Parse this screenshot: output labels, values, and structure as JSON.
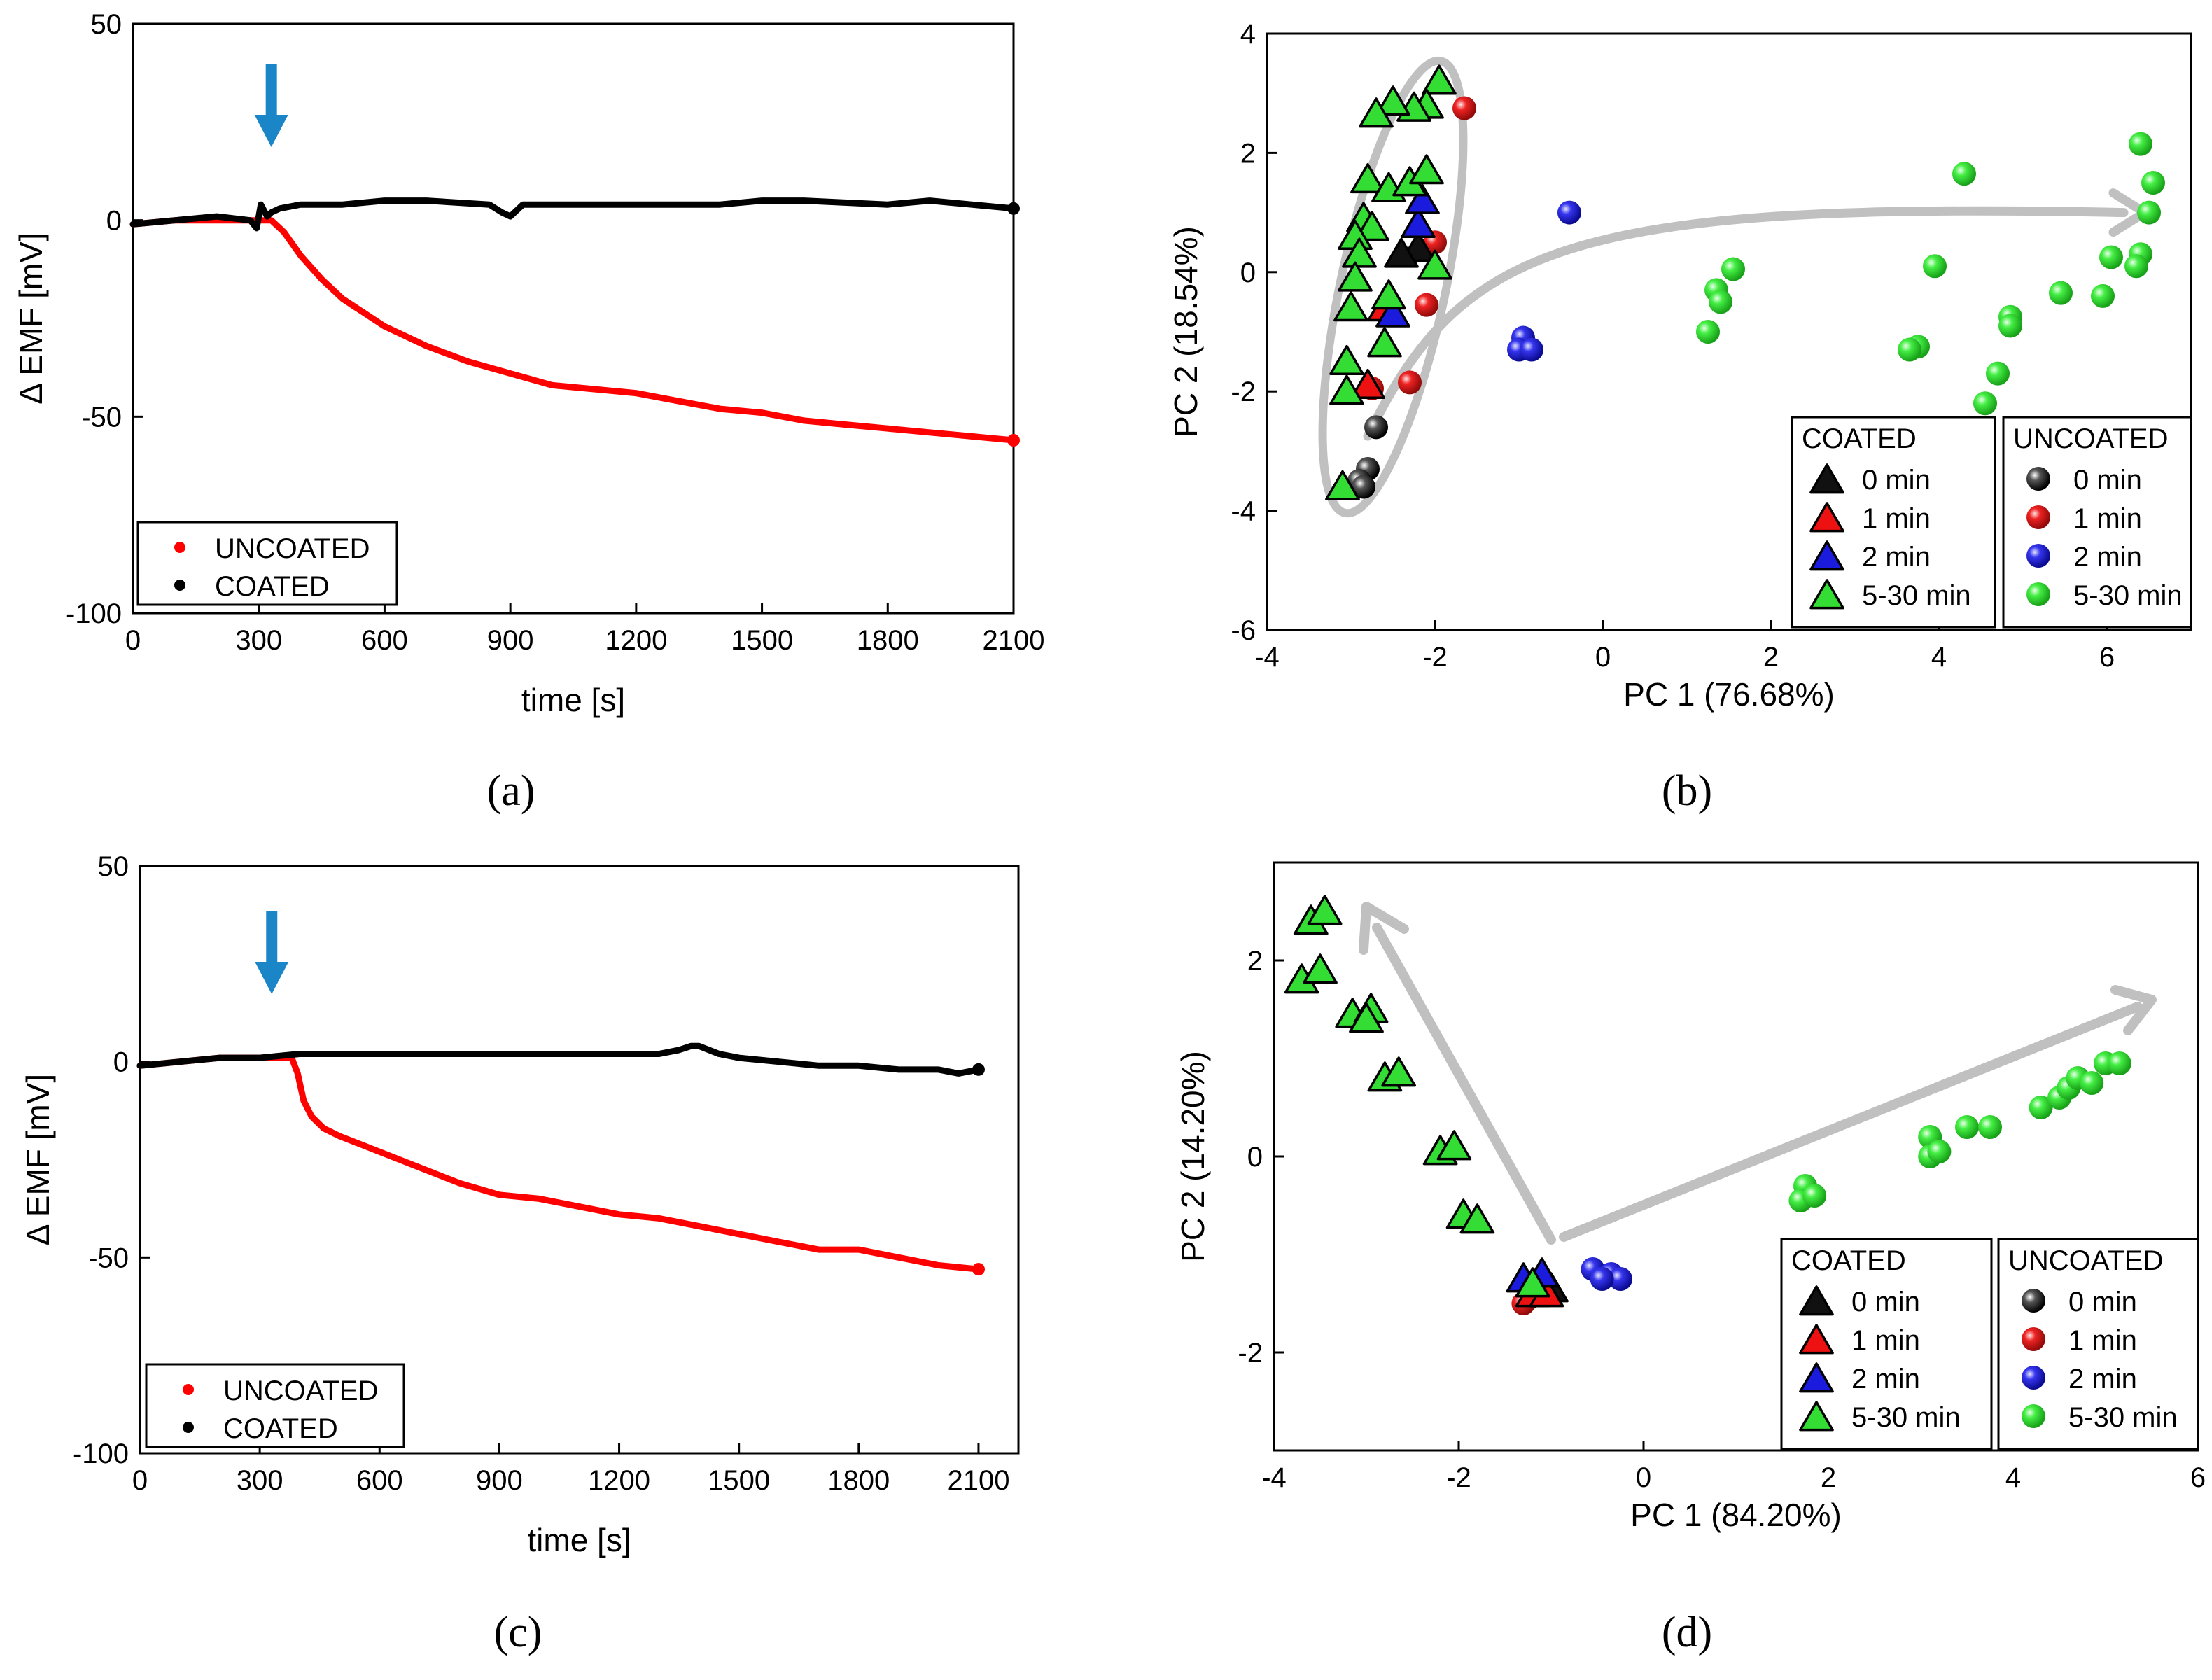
{
  "captions": [
    "(a)",
    "(b)",
    "(c)",
    "(d)"
  ],
  "colors": {
    "uncoated_line": "#ff0000",
    "coated_line": "#000000",
    "arrow_blue": "#1a86c8",
    "arrow_gray": "#c0c0c0",
    "green": "#33dd33",
    "blue": "#1b1bdd",
    "red": "#ee1111",
    "black": "#111111"
  },
  "chart_data": [
    {
      "id": "a",
      "type": "line",
      "xlabel": "time [s]",
      "ylabel": "Δ EMF [mV]",
      "xlim": [
        0,
        2100
      ],
      "ylim": [
        -100,
        50
      ],
      "xticks": [
        0,
        300,
        600,
        900,
        1200,
        1500,
        1800,
        2100
      ],
      "yticks": [
        -100,
        -50,
        0,
        50
      ],
      "xtick_labels": [
        "0",
        "300",
        "600",
        "900",
        "1200",
        "1500",
        "1800",
        "2100"
      ],
      "ytick_labels": [
        "-100",
        "-50",
        "0",
        "50"
      ],
      "injection_time": 330,
      "legend": [
        "UNCOATED",
        "COATED"
      ],
      "series": [
        {
          "name": "UNCOATED",
          "x": [
            0,
            100,
            200,
            300,
            330,
            360,
            400,
            450,
            500,
            600,
            700,
            800,
            900,
            1000,
            1100,
            1200,
            1300,
            1400,
            1500,
            1600,
            1700,
            1800,
            1900,
            2000,
            2100
          ],
          "values": [
            -1,
            0,
            0,
            0,
            0,
            -3,
            -9,
            -15,
            -20,
            -27,
            -32,
            -36,
            -39,
            -42,
            -43,
            -44,
            -46,
            -48,
            -49,
            -51,
            -52,
            -53,
            -54,
            -55,
            -56
          ]
        },
        {
          "name": "COATED",
          "x": [
            0,
            100,
            200,
            280,
            295,
            305,
            320,
            330,
            350,
            400,
            500,
            600,
            700,
            850,
            880,
            900,
            930,
            1000,
            1200,
            1400,
            1500,
            1600,
            1800,
            1900,
            2000,
            2100
          ],
          "values": [
            -1,
            0,
            1,
            0,
            -2,
            4,
            1,
            2,
            3,
            4,
            4,
            5,
            5,
            4,
            2,
            1,
            4,
            4,
            4,
            4,
            5,
            5,
            4,
            5,
            4,
            3
          ]
        }
      ]
    },
    {
      "id": "b",
      "type": "scatter",
      "xlabel": "PC 1 (76.68%)",
      "ylabel": "PC 2 (18.54%)",
      "xlim": [
        -4,
        7
      ],
      "ylim": [
        -6,
        4
      ],
      "xticks": [
        -4,
        -2,
        0,
        2,
        4,
        6
      ],
      "yticks": [
        -6,
        -4,
        -2,
        0,
        2,
        4
      ],
      "xtick_labels": [
        "-4",
        "-2",
        "0",
        "2",
        "4",
        "6"
      ],
      "ytick_labels": [
        "-6",
        "-4",
        "-2",
        "0",
        "2",
        "4"
      ],
      "legend_coated_title": "COATED",
      "legend_uncoated_title": "UNCOATED",
      "legend_entries": [
        "0 min",
        "1 min",
        "2 min",
        "5-30 min"
      ],
      "coated": [
        {
          "name": "0 min",
          "color": "black",
          "points": [
            [
              -2.2,
              0.4
            ],
            [
              -2.4,
              0.3
            ]
          ]
        },
        {
          "name": "1 min",
          "color": "red",
          "points": [
            [
              -2.8,
              -1.9
            ],
            [
              -2.6,
              -0.6
            ]
          ]
        },
        {
          "name": "2 min",
          "color": "blue",
          "points": [
            [
              -2.5,
              -0.7
            ],
            [
              -2.2,
              0.8
            ],
            [
              -2.15,
              1.2
            ]
          ]
        },
        {
          "name": "5-30 min",
          "color": "green",
          "points": [
            [
              -1.95,
              3.2
            ],
            [
              -2.1,
              2.8
            ],
            [
              -2.25,
              2.75
            ],
            [
              -2.5,
              2.85
            ],
            [
              -2.7,
              2.65
            ],
            [
              -2.8,
              1.55
            ],
            [
              -2.55,
              1.4
            ],
            [
              -2.3,
              1.5
            ],
            [
              -2.1,
              1.7
            ],
            [
              -2.85,
              0.9
            ],
            [
              -2.75,
              0.75
            ],
            [
              -2.95,
              0.6
            ],
            [
              -2.9,
              0.3
            ],
            [
              -2.95,
              -0.1
            ],
            [
              -3.0,
              -0.6
            ],
            [
              -2.55,
              -0.4
            ],
            [
              -2.6,
              -1.2
            ],
            [
              -3.05,
              -1.5
            ],
            [
              -3.05,
              -2.0
            ],
            [
              -2.0,
              0.1
            ],
            [
              -3.1,
              -3.6
            ]
          ]
        }
      ],
      "uncoated": [
        {
          "name": "0 min",
          "color": "black",
          "points": [
            [
              -2.7,
              -2.6
            ],
            [
              -2.8,
              -3.3
            ],
            [
              -2.9,
              -3.5
            ],
            [
              -2.85,
              -3.6
            ]
          ]
        },
        {
          "name": "1 min",
          "color": "red",
          "points": [
            [
              -1.65,
              2.75
            ],
            [
              -2.0,
              0.5
            ],
            [
              -2.1,
              -0.55
            ],
            [
              -2.3,
              -1.85
            ],
            [
              -2.75,
              -1.95
            ]
          ]
        },
        {
          "name": "2 min",
          "color": "blue",
          "points": [
            [
              -0.4,
              1.0
            ],
            [
              -0.95,
              -1.1
            ],
            [
              -1.0,
              -1.3
            ],
            [
              -0.85,
              -1.3
            ]
          ]
        },
        {
          "name": "5-30 min",
          "color": "green",
          "points": [
            [
              6.4,
              2.15
            ],
            [
              6.55,
              1.5
            ],
            [
              6.5,
              1.0
            ],
            [
              6.4,
              0.3
            ],
            [
              6.35,
              0.1
            ],
            [
              6.05,
              0.25
            ],
            [
              5.95,
              -0.4
            ],
            [
              5.45,
              -0.35
            ],
            [
              4.85,
              -0.75
            ],
            [
              4.85,
              -0.9
            ],
            [
              4.7,
              -1.7
            ],
            [
              4.55,
              -2.2
            ],
            [
              4.3,
              1.65
            ],
            [
              3.95,
              0.1
            ],
            [
              3.75,
              -1.25
            ],
            [
              3.65,
              -1.3
            ],
            [
              1.55,
              0.05
            ],
            [
              1.35,
              -0.3
            ],
            [
              1.4,
              -0.5
            ],
            [
              1.25,
              -1.0
            ]
          ]
        }
      ]
    },
    {
      "id": "c",
      "type": "line",
      "xlabel": "time [s]",
      "ylabel": "Δ EMF [mV]",
      "xlim": [
        0,
        2200
      ],
      "ylim": [
        -100,
        50
      ],
      "xticks": [
        0,
        300,
        600,
        900,
        1200,
        1500,
        1800,
        2100
      ],
      "yticks": [
        -100,
        -50,
        0,
        50
      ],
      "xtick_labels": [
        "0",
        "300",
        "600",
        "900",
        "1200",
        "1500",
        "1800",
        "2100"
      ],
      "ytick_labels": [
        "-100",
        "-50",
        "0",
        "50"
      ],
      "injection_time": 330,
      "legend": [
        "UNCOATED",
        "COATED"
      ],
      "series": [
        {
          "name": "UNCOATED",
          "x": [
            0,
            100,
            200,
            300,
            380,
            395,
            410,
            430,
            460,
            500,
            600,
            700,
            800,
            900,
            1000,
            1100,
            1200,
            1300,
            1400,
            1500,
            1600,
            1700,
            1800,
            1900,
            2000,
            2100
          ],
          "values": [
            -1,
            0,
            1,
            1,
            1,
            -3,
            -10,
            -14,
            -17,
            -19,
            -23,
            -27,
            -31,
            -34,
            -35,
            -37,
            -39,
            -40,
            -42,
            -44,
            -46,
            -48,
            -48,
            -50,
            -52,
            -53
          ]
        },
        {
          "name": "COATED",
          "x": [
            0,
            100,
            200,
            300,
            400,
            500,
            600,
            700,
            800,
            900,
            1000,
            1100,
            1200,
            1300,
            1350,
            1380,
            1400,
            1450,
            1500,
            1600,
            1700,
            1800,
            1900,
            2000,
            2050,
            2100
          ],
          "values": [
            -1,
            0,
            1,
            1,
            2,
            2,
            2,
            2,
            2,
            2,
            2,
            2,
            2,
            2,
            3,
            4,
            4,
            2,
            1,
            0,
            -1,
            -1,
            -2,
            -2,
            -3,
            -2
          ]
        }
      ]
    },
    {
      "id": "d",
      "type": "scatter",
      "xlabel": "PC 1 (84.20%)",
      "ylabel": "PC 2 (14.20%)",
      "xlim": [
        -4,
        6
      ],
      "ylim": [
        -3,
        3
      ],
      "xticks": [
        -4,
        -2,
        0,
        2,
        4,
        6
      ],
      "yticks": [
        -2,
        0,
        2
      ],
      "xtick_labels": [
        "-4",
        "-2",
        "0",
        "2",
        "4",
        "6"
      ],
      "ytick_labels": [
        "-2",
        "0",
        "2"
      ],
      "legend_coated_title": "COATED",
      "legend_uncoated_title": "UNCOATED",
      "legend_entries": [
        "0 min",
        "1 min",
        "2 min",
        "5-30 min"
      ],
      "coated": [
        {
          "name": "0 min",
          "color": "black",
          "points": [
            [
              -1.15,
              -1.3
            ],
            [
              -1.0,
              -1.35
            ]
          ]
        },
        {
          "name": "1 min",
          "color": "red",
          "points": [
            [
              -1.2,
              -1.4
            ],
            [
              -1.05,
              -1.4
            ]
          ]
        },
        {
          "name": "2 min",
          "color": "blue",
          "points": [
            [
              -1.3,
              -1.25
            ],
            [
              -1.1,
              -1.2
            ]
          ]
        },
        {
          "name": "5-30 min",
          "color": "green",
          "points": [
            [
              -3.6,
              2.4
            ],
            [
              -3.45,
              2.5
            ],
            [
              -3.7,
              1.8
            ],
            [
              -3.5,
              1.9
            ],
            [
              -3.15,
              1.45
            ],
            [
              -2.95,
              1.5
            ],
            [
              -3.0,
              1.4
            ],
            [
              -2.8,
              0.8
            ],
            [
              -2.65,
              0.85
            ],
            [
              -2.2,
              0.05
            ],
            [
              -2.05,
              0.1
            ],
            [
              -1.95,
              -0.6
            ],
            [
              -1.8,
              -0.65
            ],
            [
              -1.2,
              -1.3
            ]
          ]
        }
      ],
      "uncoated": [
        {
          "name": "0 min",
          "color": "black",
          "points": [
            [
              -1.25,
              -1.45
            ]
          ]
        },
        {
          "name": "1 min",
          "color": "red",
          "points": [
            [
              -1.3,
              -1.5
            ]
          ]
        },
        {
          "name": "2 min",
          "color": "blue",
          "points": [
            [
              -0.55,
              -1.15
            ],
            [
              -0.35,
              -1.2
            ],
            [
              -0.25,
              -1.25
            ],
            [
              -0.45,
              -1.25
            ]
          ]
        },
        {
          "name": "5-30 min",
          "color": "green",
          "points": [
            [
              1.75,
              -0.3
            ],
            [
              1.7,
              -0.45
            ],
            [
              1.85,
              -0.4
            ],
            [
              3.1,
              0.2
            ],
            [
              3.1,
              0.0
            ],
            [
              3.2,
              0.05
            ],
            [
              3.5,
              0.3
            ],
            [
              3.75,
              0.3
            ],
            [
              4.3,
              0.5
            ],
            [
              4.5,
              0.6
            ],
            [
              4.6,
              0.7
            ],
            [
              4.7,
              0.8
            ],
            [
              4.85,
              0.75
            ],
            [
              5.0,
              0.95
            ],
            [
              5.15,
              0.95
            ]
          ]
        }
      ]
    }
  ]
}
